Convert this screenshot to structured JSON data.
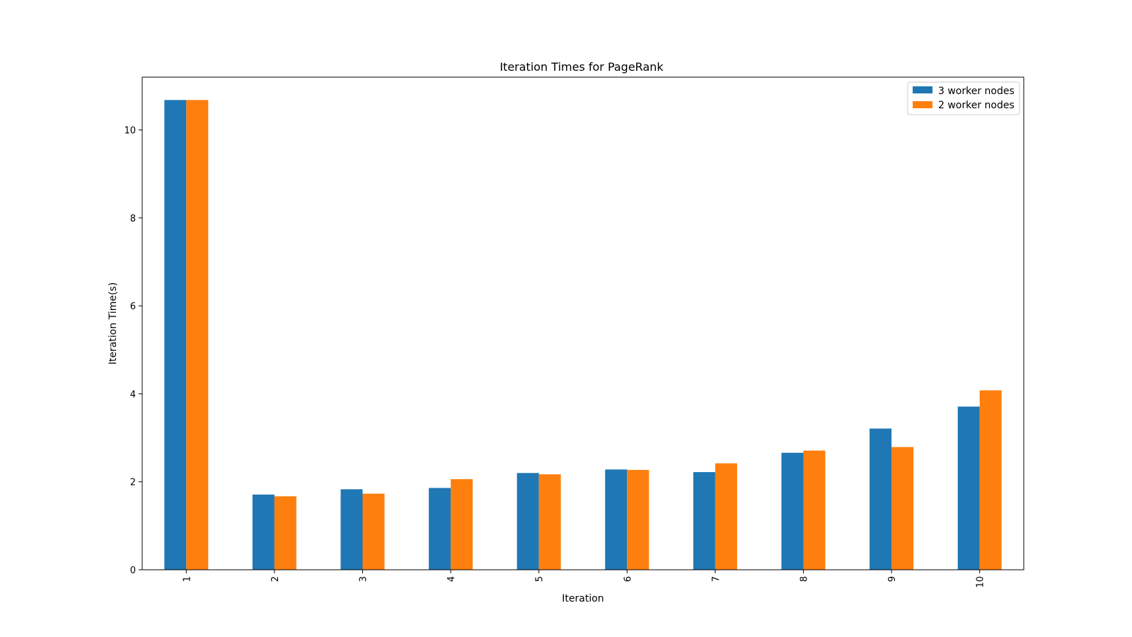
{
  "chart_data": {
    "type": "bar",
    "title": "Iteration Times for PageRank",
    "xlabel": "Iteration",
    "ylabel": "Iteration Time(s)",
    "categories": [
      "1",
      "2",
      "3",
      "4",
      "5",
      "6",
      "7",
      "8",
      "9",
      "10"
    ],
    "yticks": [
      "0",
      "2",
      "4",
      "6",
      "8",
      "10"
    ],
    "ylim": [
      0,
      11.2
    ],
    "grid": false,
    "legend_position": "top-right",
    "series": [
      {
        "name": "3 worker nodes",
        "color": "#1f77b4",
        "values": [
          10.68,
          1.71,
          1.83,
          1.86,
          2.2,
          2.28,
          2.22,
          2.66,
          3.21,
          3.71
        ]
      },
      {
        "name": "2 worker nodes",
        "color": "#ff7f0e",
        "values": [
          10.68,
          1.67,
          1.73,
          2.06,
          2.17,
          2.27,
          2.42,
          2.71,
          2.79,
          4.08
        ]
      }
    ]
  }
}
